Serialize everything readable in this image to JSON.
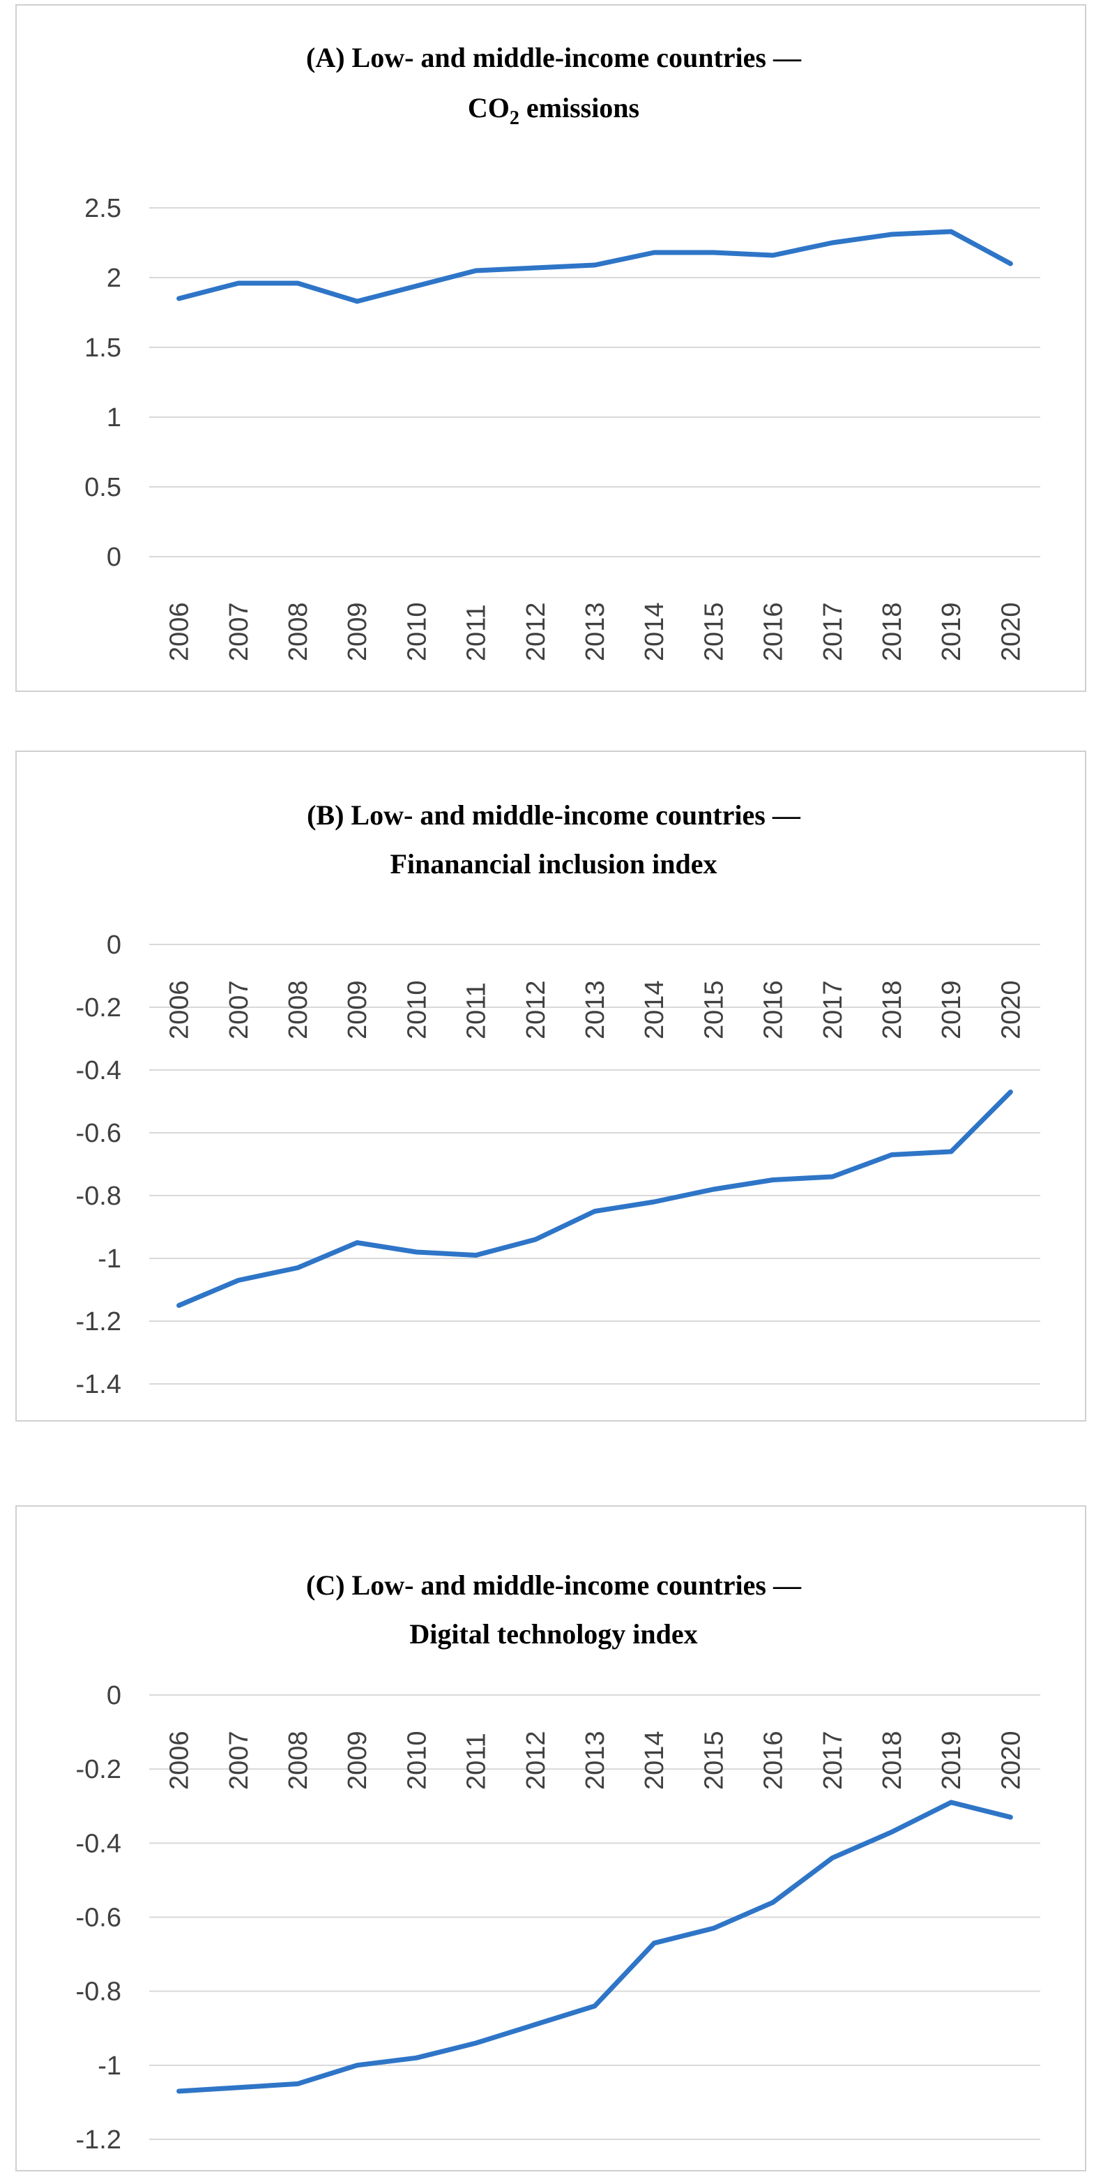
{
  "chart_data": [
    {
      "type": "line",
      "title_lines": [
        "(A) Low- and middle-income countries —",
        "CO",
        "2",
        " emissions"
      ],
      "categories": [
        "2006",
        "2007",
        "2008",
        "2009",
        "2010",
        "2011",
        "2012",
        "2013",
        "2014",
        "2015",
        "2016",
        "2017",
        "2018",
        "2019",
        "2020"
      ],
      "series": [
        {
          "name": "CO2 emissions",
          "values": [
            1.85,
            1.96,
            1.96,
            1.83,
            1.94,
            2.05,
            2.07,
            2.09,
            2.18,
            2.18,
            2.16,
            2.25,
            2.31,
            2.33,
            2.1
          ]
        }
      ],
      "ylim": [
        0,
        2.5
      ],
      "yticks": [
        "2.5",
        "2",
        "1.5",
        "1",
        "0.5",
        "0"
      ],
      "ytick_values": [
        2.5,
        2,
        1.5,
        1,
        0.5,
        0
      ],
      "color": "#2e75c7",
      "xlabel": "",
      "ylabel": ""
    },
    {
      "type": "line",
      "title_lines": [
        "(B) Low- and middle-income  countries —",
        "Finanancial inclusion index"
      ],
      "categories": [
        "2006",
        "2007",
        "2008",
        "2009",
        "2010",
        "2011",
        "2012",
        "2013",
        "2014",
        "2015",
        "2016",
        "2017",
        "2018",
        "2019",
        "2020"
      ],
      "series": [
        {
          "name": "Financial inclusion index",
          "values": [
            -1.15,
            -1.07,
            -1.03,
            -0.95,
            -0.98,
            -0.99,
            -0.94,
            -0.85,
            -0.82,
            -0.78,
            -0.75,
            -0.74,
            -0.67,
            -0.66,
            -0.47
          ]
        }
      ],
      "ylim": [
        -1.4,
        0
      ],
      "yticks": [
        "0",
        "-0.2",
        "-0.4",
        "-0.6",
        "-0.8",
        "-1",
        "-1.2",
        "-1.4"
      ],
      "ytick_values": [
        0,
        -0.2,
        -0.4,
        -0.6,
        -0.8,
        -1,
        -1.2,
        -1.4
      ],
      "color": "#2e75c7",
      "xlabel": "",
      "ylabel": ""
    },
    {
      "type": "line",
      "title_lines": [
        "(C) Low- and middle-income  countries —",
        "Digital technology index"
      ],
      "categories": [
        "2006",
        "2007",
        "2008",
        "2009",
        "2010",
        "2011",
        "2012",
        "2013",
        "2014",
        "2015",
        "2016",
        "2017",
        "2018",
        "2019",
        "2020"
      ],
      "series": [
        {
          "name": "Digital technology index",
          "values": [
            -1.07,
            -1.06,
            -1.05,
            -1.0,
            -0.98,
            -0.94,
            -0.89,
            -0.84,
            -0.67,
            -0.63,
            -0.56,
            -0.44,
            -0.37,
            -0.29,
            -0.33
          ]
        }
      ],
      "ylim": [
        -1.2,
        0
      ],
      "yticks": [
        "0",
        "-0.2",
        "-0.4",
        "-0.6",
        "-0.8",
        "-1",
        "-1.2"
      ],
      "ytick_values": [
        0,
        -0.2,
        -0.4,
        -0.6,
        -0.8,
        -1,
        -1.2
      ],
      "color": "#2e75c7",
      "xlabel": "",
      "ylabel": ""
    }
  ]
}
